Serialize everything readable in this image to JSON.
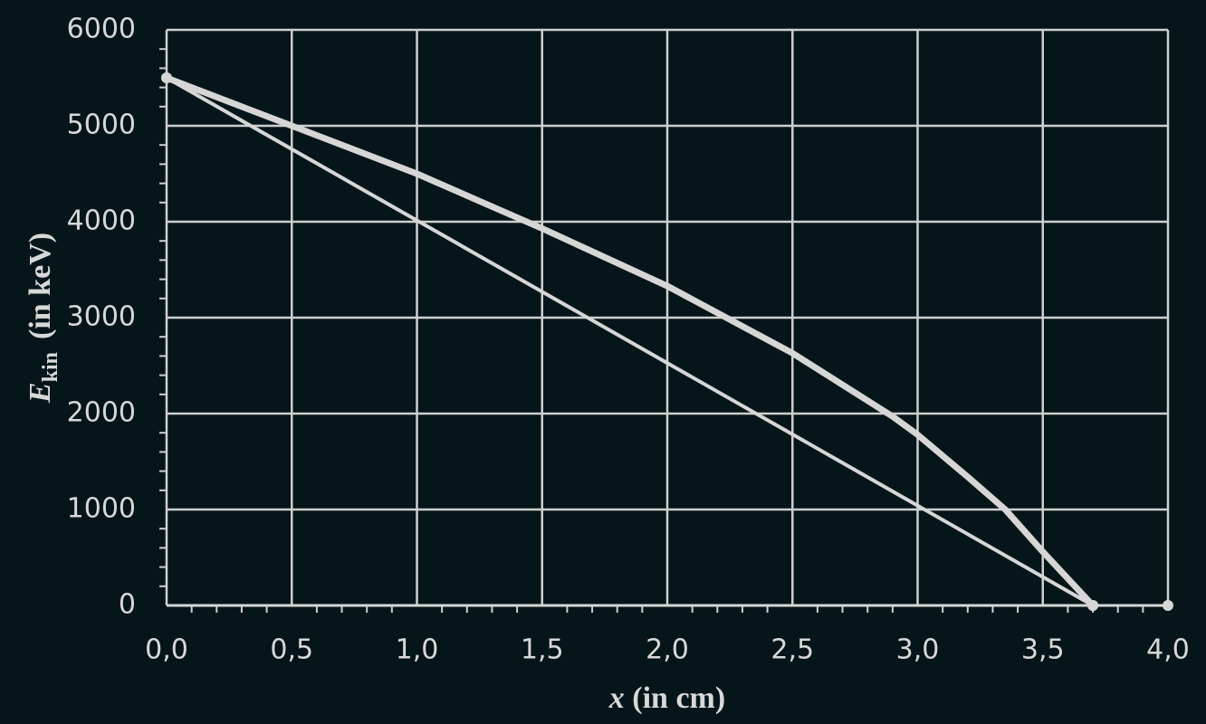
{
  "chart_data": {
    "type": "line",
    "xlabel": {
      "symbol": "x",
      "unit": "(in cm)"
    },
    "ylabel": {
      "symbol": "E",
      "subscript": "kin",
      "unit": "(in keV)"
    },
    "series": [
      {
        "color": "#d6d6d6",
        "width": 4,
        "x": [
          0,
          3.7
        ],
        "values": [
          5500,
          0
        ]
      },
      {
        "color": "#d6d6d6",
        "width": 7,
        "x": [
          0,
          0.5,
          1.0,
          1.5,
          2.0,
          2.5,
          2.9,
          3.0,
          3.2,
          3.35,
          3.5,
          3.7
        ],
        "values": [
          5500,
          5000,
          4500,
          3930,
          3330,
          2630,
          1970,
          1780,
          1340,
          1000,
          560,
          0
        ]
      }
    ],
    "xlim": [
      0,
      4
    ],
    "ylim": [
      0,
      6000
    ],
    "xticks": [
      {
        "value": 0,
        "label": "0,0"
      },
      {
        "value": 0.5,
        "label": "0,5"
      },
      {
        "value": 1,
        "label": "1,0"
      },
      {
        "value": 1.5,
        "label": "1,5"
      },
      {
        "value": 2,
        "label": "2,0"
      },
      {
        "value": 2.5,
        "label": "2,5"
      },
      {
        "value": 3,
        "label": "3,0"
      },
      {
        "value": 3.5,
        "label": "3,5"
      },
      {
        "value": 4,
        "label": "4,0"
      }
    ],
    "yticks": [
      0,
      1000,
      2000,
      3000,
      4000,
      5000,
      6000
    ],
    "grid": true
  }
}
